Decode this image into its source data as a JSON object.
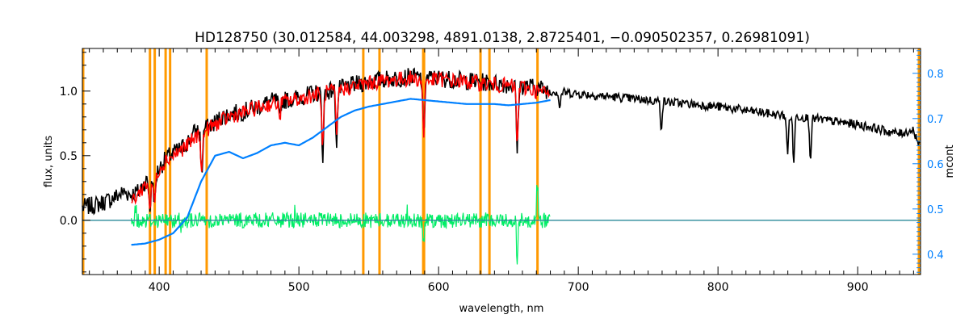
{
  "chart_data": {
    "type": "line",
    "title": "HD128750   (30.012584, 44.003298, 4891.0138, 2.8725401, −0.090502357, 0.26981091)",
    "xlabel": "wavelength, nm",
    "ylabel": "flux, units",
    "y2label": "mcont",
    "xlim": [
      345,
      945
    ],
    "ylim": [
      -0.42,
      1.33
    ],
    "y2lim": [
      0.355,
      0.855
    ],
    "grid": false,
    "x_ticks": [
      400,
      500,
      600,
      700,
      800,
      900
    ],
    "y_ticks": [
      0.0,
      0.5,
      1.0
    ],
    "y_tick_labels": [
      "0.0",
      "0.5",
      "1.0"
    ],
    "y2_ticks": [
      0.4,
      0.5,
      0.6,
      0.7,
      0.8
    ],
    "y2_tick_labels": [
      "0.4",
      "0.5",
      "0.6",
      "0.7",
      "0.8"
    ],
    "line_markers_nm": [
      393.4,
      396.8,
      404.6,
      407.8,
      434.0,
      546.1,
      557.7,
      589.0,
      589.6,
      630.0,
      636.4,
      670.8
    ],
    "colors": {
      "observed": "#000000",
      "model": "#ff0000",
      "residual": "#00ee66",
      "continuum": "#0080ff",
      "markers": "#ff9900",
      "right_axis": "#0080ff"
    },
    "series": [
      {
        "role": "observed",
        "axis": "left",
        "x": [
          345,
          355,
          365,
          375,
          380,
          385,
          390,
          395,
          400,
          405,
          410,
          415,
          420,
          425,
          430,
          435,
          440,
          445,
          450,
          460,
          470,
          480,
          490,
          500,
          510,
          520,
          530,
          540,
          550,
          560,
          570,
          580,
          590,
          600,
          610,
          620,
          630,
          640,
          650,
          660,
          670,
          680,
          690,
          700,
          720,
          740,
          760,
          780,
          800,
          820,
          840,
          860,
          880,
          900,
          910,
          920,
          930,
          940,
          945
        ],
        "y": [
          0.1,
          0.12,
          0.16,
          0.22,
          0.2,
          0.22,
          0.3,
          0.3,
          0.4,
          0.48,
          0.52,
          0.55,
          0.6,
          0.68,
          0.7,
          0.72,
          0.76,
          0.8,
          0.82,
          0.84,
          0.88,
          0.92,
          0.93,
          0.95,
          0.98,
          1.0,
          1.02,
          1.05,
          1.07,
          1.09,
          1.1,
          1.11,
          1.1,
          1.1,
          1.09,
          1.08,
          1.07,
          1.06,
          1.05,
          1.04,
          1.03,
          1.0,
          0.99,
          0.98,
          0.96,
          0.94,
          0.92,
          0.9,
          0.88,
          0.85,
          0.82,
          0.8,
          0.77,
          0.74,
          0.72,
          0.69,
          0.67,
          0.7,
          0.55
        ]
      },
      {
        "role": "model",
        "axis": "left",
        "x": [
          380,
          385,
          390,
          395,
          400,
          405,
          410,
          420,
          430,
          440,
          450,
          460,
          470,
          480,
          490,
          500,
          510,
          520,
          530,
          540,
          550,
          560,
          570,
          580,
          590,
          600,
          610,
          620,
          630,
          640,
          650,
          660,
          670,
          680
        ],
        "y": [
          0.15,
          0.2,
          0.28,
          0.28,
          0.4,
          0.47,
          0.5,
          0.58,
          0.68,
          0.74,
          0.8,
          0.83,
          0.87,
          0.9,
          0.92,
          0.94,
          0.97,
          0.99,
          1.01,
          1.04,
          1.06,
          1.08,
          1.09,
          1.1,
          1.08,
          1.09,
          1.08,
          1.07,
          1.06,
          1.05,
          1.04,
          1.03,
          1.0,
          0.98
        ]
      },
      {
        "role": "continuum",
        "axis": "left",
        "x": [
          380,
          390,
          400,
          410,
          420,
          430,
          440,
          450,
          460,
          470,
          480,
          490,
          500,
          510,
          520,
          530,
          540,
          550,
          560,
          570,
          580,
          590,
          600,
          610,
          620,
          630,
          640,
          650,
          660,
          670,
          680
        ],
        "y": [
          -0.19,
          -0.18,
          -0.15,
          -0.1,
          0.02,
          0.3,
          0.5,
          0.53,
          0.48,
          0.52,
          0.58,
          0.6,
          0.58,
          0.64,
          0.72,
          0.8,
          0.85,
          0.88,
          0.9,
          0.92,
          0.94,
          0.93,
          0.92,
          0.91,
          0.9,
          0.9,
          0.9,
          0.89,
          0.9,
          0.91,
          0.93
        ]
      },
      {
        "role": "continuum-flat",
        "axis": "left",
        "x": [
          345,
          380,
          680,
          945
        ],
        "y": [
          0.0,
          0.0,
          0.0,
          0.0
        ]
      },
      {
        "role": "residual",
        "axis": "left",
        "x_range": [
          380,
          680
        ],
        "y_center": 0.0,
        "y_scatter": 0.06
      }
    ],
    "absorption_features_nm": [
      {
        "x": 393.4,
        "depth": 0.2
      },
      {
        "x": 396.8,
        "depth": 0.2
      },
      {
        "x": 430.5,
        "depth": 0.35
      },
      {
        "x": 486.1,
        "depth": 0.15
      },
      {
        "x": 517.0,
        "depth": 0.5
      },
      {
        "x": 527.0,
        "depth": 0.4
      },
      {
        "x": 589.3,
        "depth": 0.45
      },
      {
        "x": 656.3,
        "depth": 0.5
      },
      {
        "x": 686.7,
        "depth": 0.12
      },
      {
        "x": 759.4,
        "depth": 0.2
      },
      {
        "x": 849.8,
        "depth": 0.3
      },
      {
        "x": 854.2,
        "depth": 0.35
      },
      {
        "x": 866.2,
        "depth": 0.3
      }
    ],
    "residual_features_nm": [
      {
        "x": 589.3,
        "value": -0.2
      },
      {
        "x": 656.3,
        "value": -0.35
      },
      {
        "x": 670.8,
        "value": 0.3
      }
    ]
  }
}
